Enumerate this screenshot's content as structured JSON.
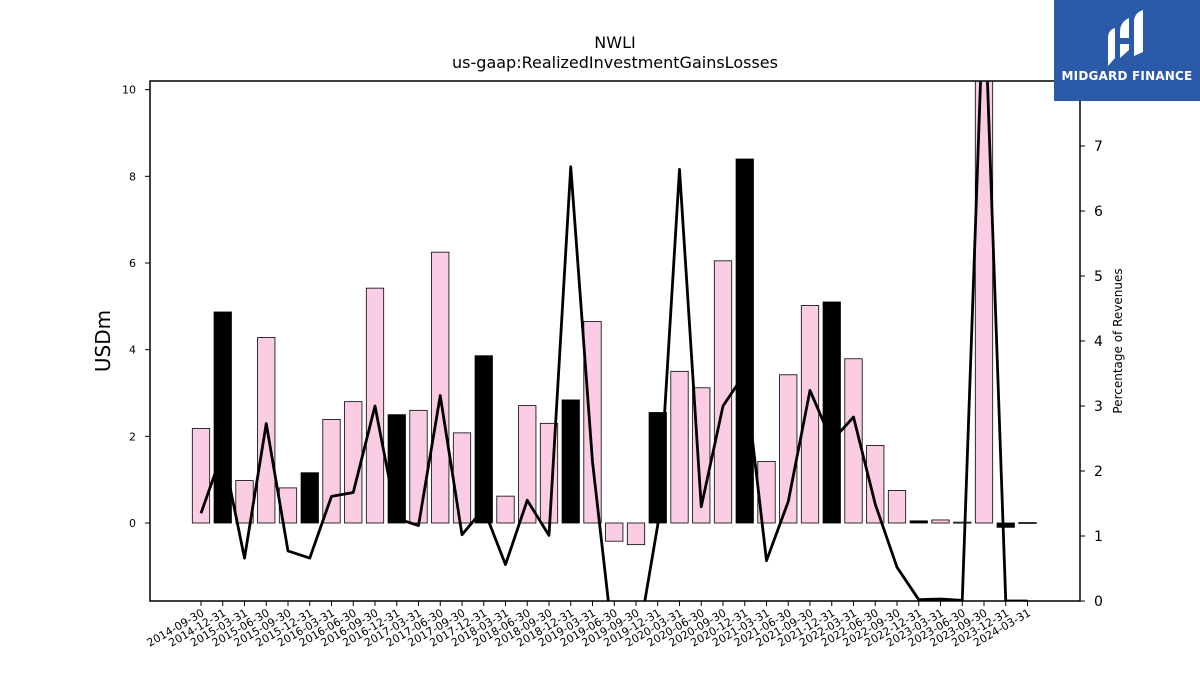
{
  "logo": {
    "text": "MIDGARD FINANCE",
    "icon": "midgard-logo-icon",
    "bg_color": "#2a5aa8"
  },
  "chart_data": {
    "type": "bar",
    "title": "NWLI",
    "subtitle": "us-gaap:RealizedInvestmentGainsLosses",
    "ylabel": "USDm",
    "y2label": "Percentage of Revenues",
    "ylim": [
      -1.8,
      10.2
    ],
    "y2lim": [
      0,
      8.0
    ],
    "yticks": [
      0,
      2,
      4,
      6,
      8,
      10
    ],
    "y2ticks": [
      0,
      1,
      2,
      3,
      4,
      5,
      6,
      7
    ],
    "categories": [
      "2014-09-30",
      "2014-12-31",
      "2015-03-31",
      "2015-06-30",
      "2015-09-30",
      "2015-12-31",
      "2016-03-31",
      "2016-06-30",
      "2016-09-30",
      "2016-12-31",
      "2017-03-31",
      "2017-06-30",
      "2017-09-30",
      "2017-12-31",
      "2018-03-31",
      "2018-06-30",
      "2018-09-30",
      "2018-12-31",
      "2019-03-31",
      "2019-06-30",
      "2019-09-30",
      "2019-12-31",
      "2020-03-31",
      "2020-06-30",
      "2020-09-30",
      "2020-12-31",
      "2021-03-31",
      "2021-06-30",
      "2021-09-30",
      "2021-12-31",
      "2022-03-31",
      "2022-06-30",
      "2022-09-30",
      "2022-12-31",
      "2023-03-31",
      "2023-06-30",
      "2023-09-30",
      "2023-12-31",
      "2024-03-31"
    ],
    "series": [
      {
        "kind": "bar",
        "axis": "left",
        "values": [
          2.18,
          4.87,
          0.98,
          4.28,
          0.81,
          1.16,
          2.39,
          2.8,
          5.42,
          2.5,
          2.6,
          6.25,
          2.08,
          3.86,
          0.62,
          2.71,
          2.3,
          2.84,
          4.65,
          -0.42,
          -0.5,
          2.55,
          3.5,
          3.12,
          6.05,
          8.4,
          1.42,
          3.42,
          5.02,
          5.1,
          3.79,
          1.79,
          0.75,
          0.05,
          0.07,
          0.02,
          10.4,
          -0.1,
          0.01
        ],
        "highlight": [
          false,
          true,
          false,
          false,
          false,
          true,
          false,
          false,
          false,
          true,
          false,
          false,
          false,
          true,
          false,
          false,
          false,
          true,
          false,
          false,
          false,
          true,
          false,
          false,
          false,
          true,
          false,
          false,
          false,
          true,
          false,
          false,
          false,
          true,
          false,
          false,
          false,
          true,
          false
        ],
        "fill_color": "#fbcde4",
        "highlight_color": "#000000"
      },
      {
        "kind": "line",
        "axis": "right",
        "values": [
          1.35,
          2.3,
          0.66,
          2.73,
          0.77,
          0.66,
          1.61,
          1.67,
          3.0,
          1.27,
          1.16,
          3.16,
          1.02,
          1.42,
          0.56,
          1.55,
          1.01,
          6.68,
          2.14,
          -0.8,
          -0.8,
          1.17,
          6.64,
          1.45,
          3.0,
          3.5,
          0.62,
          1.53,
          3.24,
          2.46,
          2.83,
          1.49,
          0.52,
          0.02,
          0.03,
          0.01,
          9.5,
          0.0,
          0.0
        ],
        "color": "#000000"
      }
    ]
  }
}
